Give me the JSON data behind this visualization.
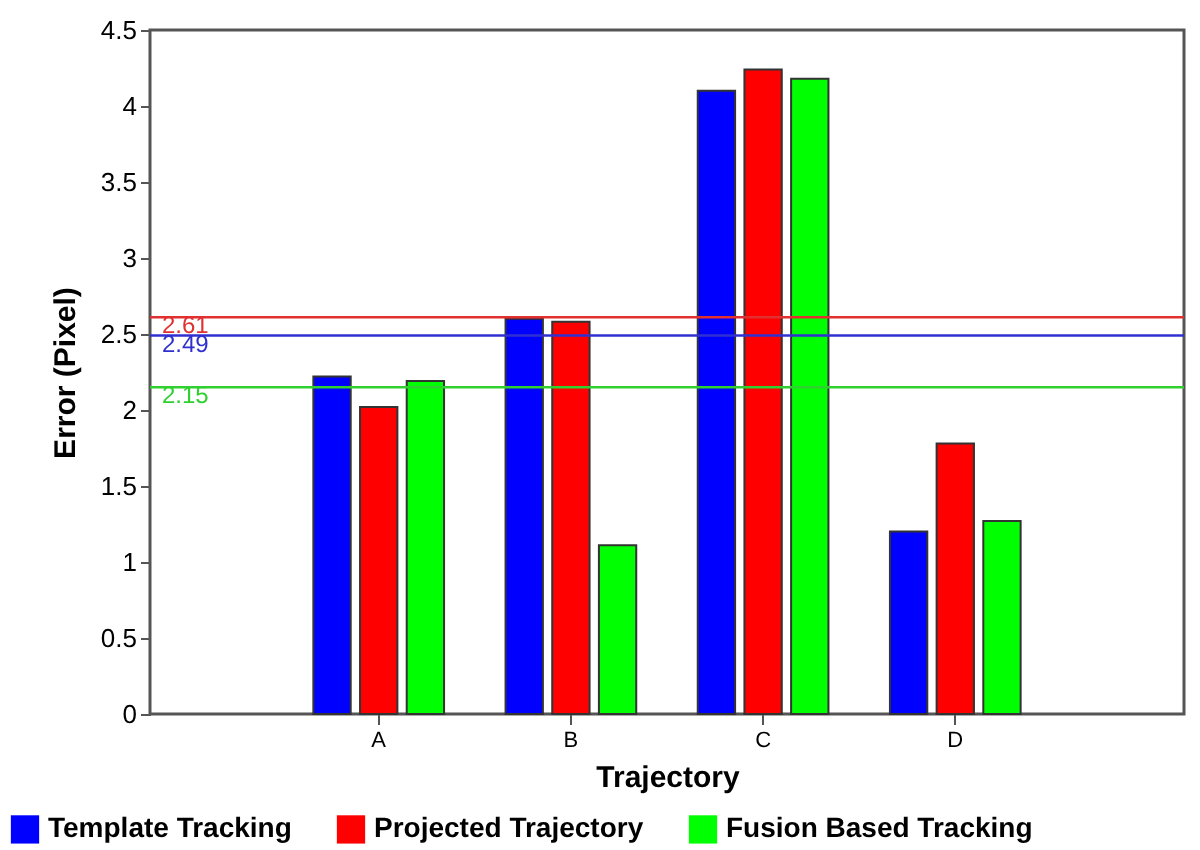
{
  "chart_data": {
    "type": "bar",
    "xlabel": "Trajectory",
    "ylabel": "Error (Pixel)",
    "categories": [
      "A",
      "B",
      "C",
      "D"
    ],
    "series": [
      {
        "name": "Template Tracking",
        "color": "#0000ff",
        "values": [
          2.22,
          2.6,
          4.1,
          1.2
        ]
      },
      {
        "name": "Projected Trajectory",
        "color": "#ff0000",
        "values": [
          2.02,
          2.58,
          4.24,
          1.78
        ]
      },
      {
        "name": "Fusion Based Tracking",
        "color": "#00ff00",
        "values": [
          2.19,
          1.11,
          4.18,
          1.27
        ]
      }
    ],
    "ylim": [
      0,
      4.5
    ],
    "yticks": [
      0,
      0.5,
      1,
      1.5,
      2,
      2.5,
      3,
      3.5,
      4,
      4.5
    ],
    "ref_lines": [
      {
        "axis": "y",
        "value": 2.61,
        "label": "2.61",
        "color": "#e03030"
      },
      {
        "axis": "y",
        "value": 2.49,
        "label": "2.49",
        "color": "#3030d0"
      },
      {
        "axis": "y",
        "value": 2.15,
        "label": "2.15",
        "color": "#30d030"
      }
    ],
    "grid": false,
    "legend": "bottom"
  }
}
